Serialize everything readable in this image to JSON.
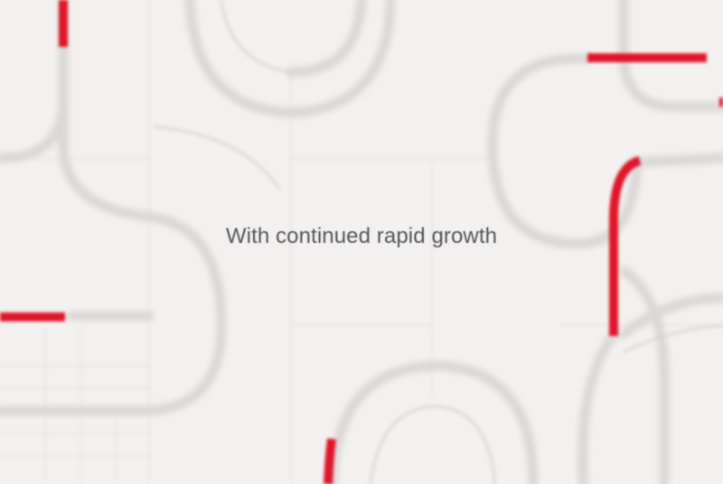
{
  "caption": "With continued rapid growth",
  "colors": {
    "background": "#f3f1ef",
    "track": "#dcdad8",
    "track_shadow": "#cfcdcb",
    "accent_red": "#e0162b",
    "text": "#57565a"
  }
}
